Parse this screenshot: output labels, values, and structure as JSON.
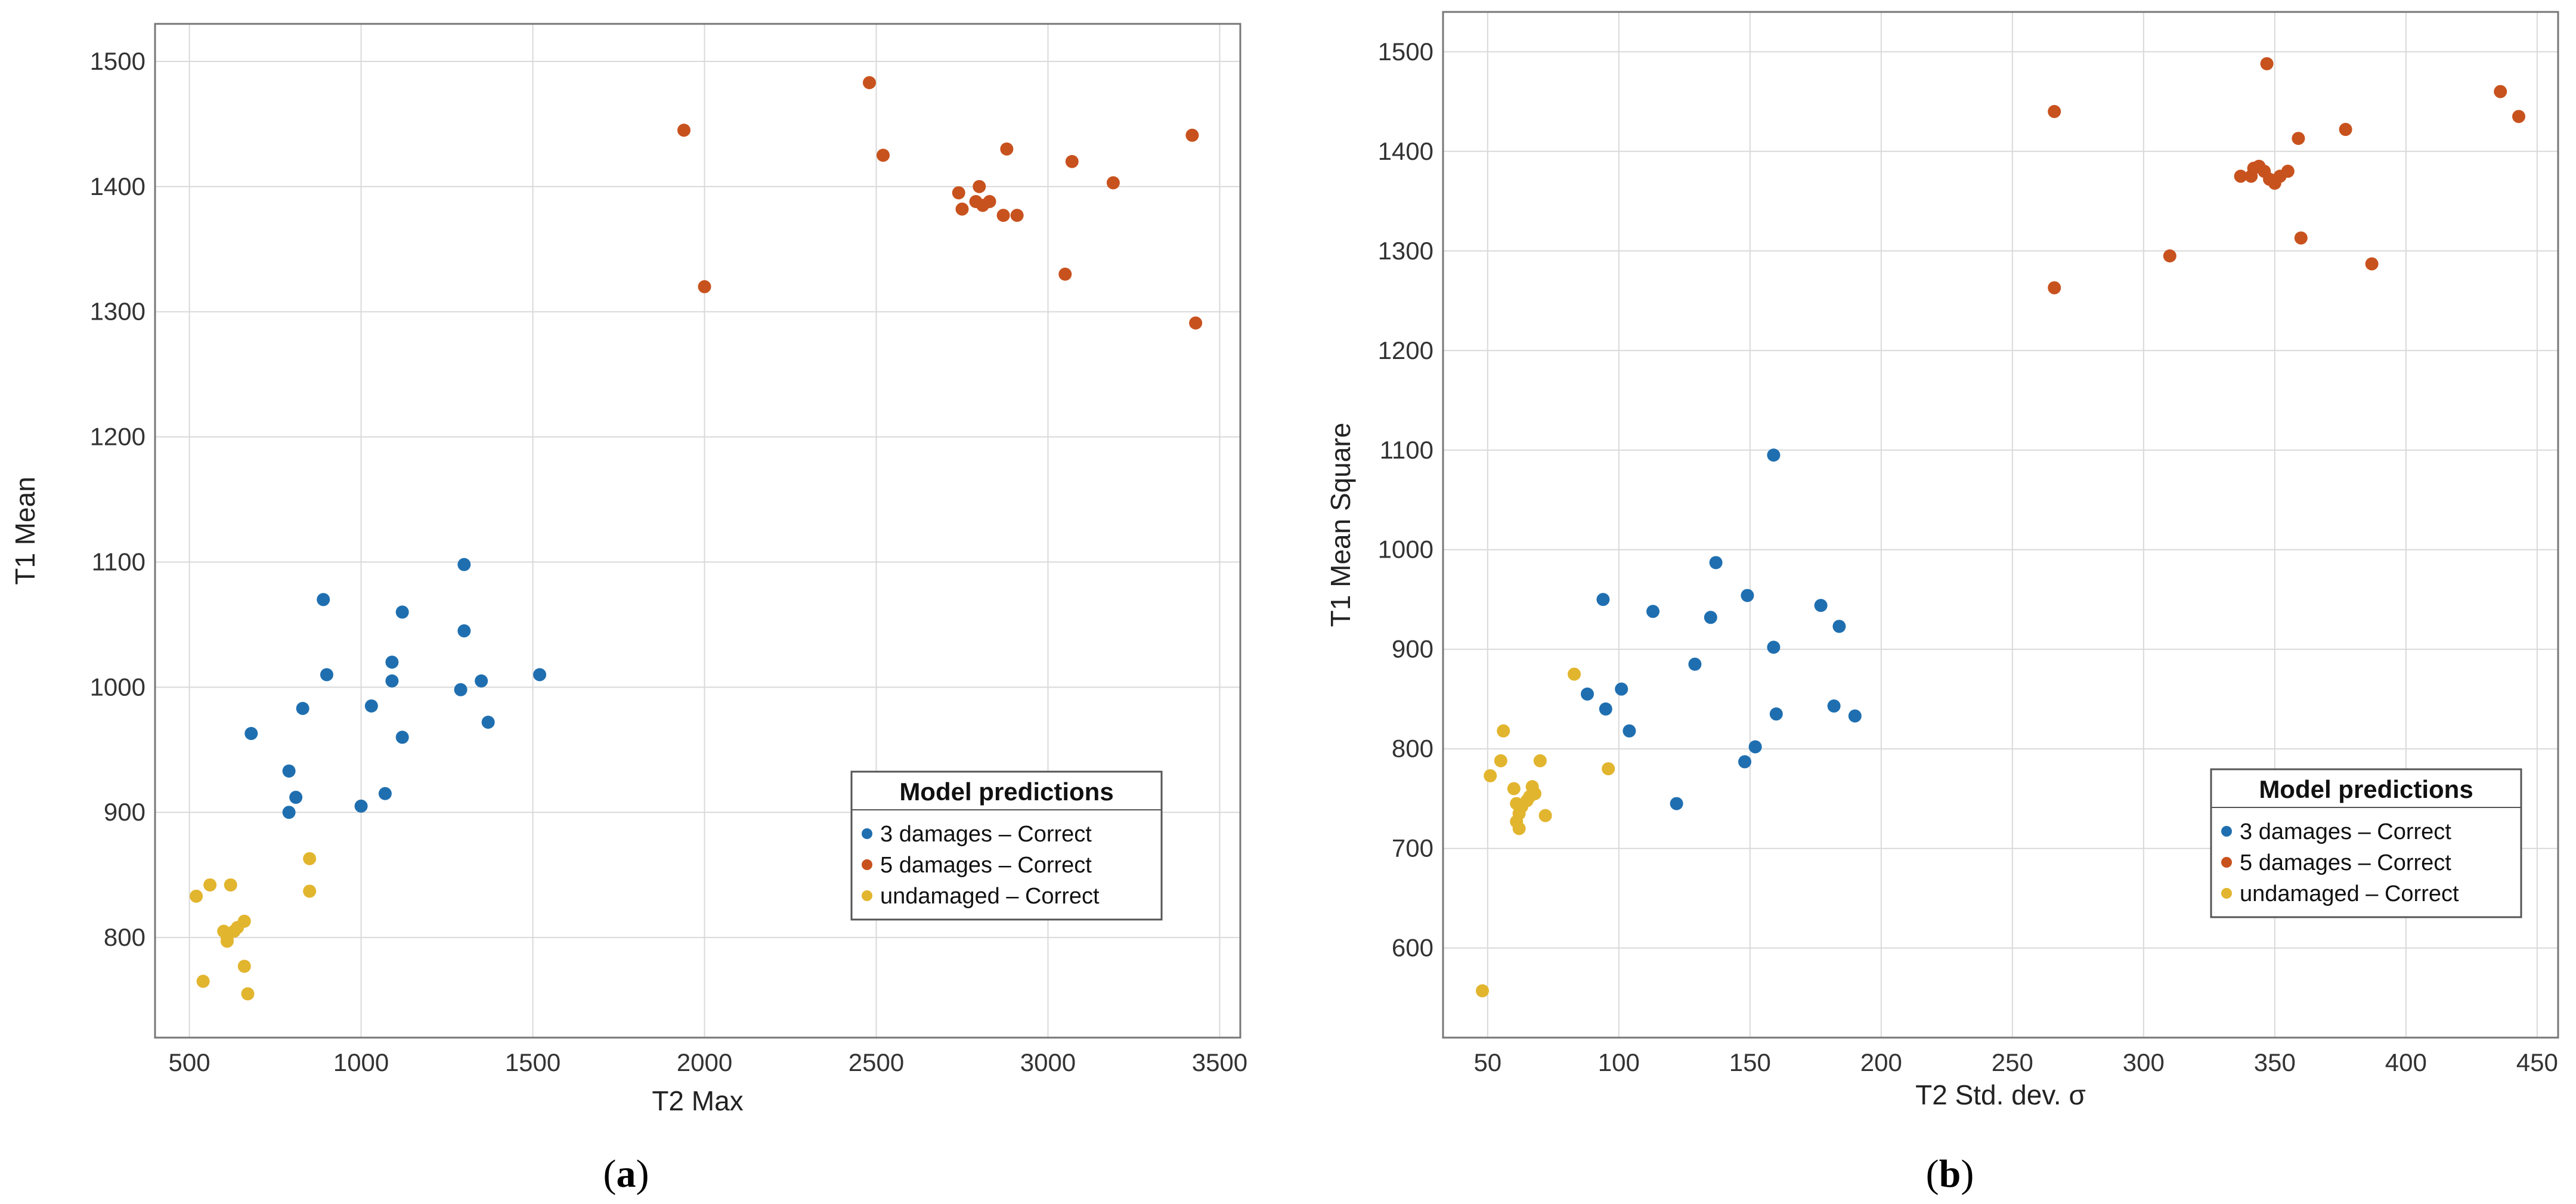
{
  "chart_data": [
    {
      "type": "scatter",
      "panel_label": "a",
      "xlabel": "T2 Max",
      "ylabel": "T1 Mean",
      "xlim": [
        400,
        3560
      ],
      "ylim": [
        720,
        1530
      ],
      "xticks": [
        500,
        1000,
        1500,
        2000,
        2500,
        3000,
        3500
      ],
      "yticks": [
        800,
        900,
        1000,
        1100,
        1200,
        1300,
        1400,
        1500
      ],
      "grid": true,
      "legend": {
        "title": "Model predictions",
        "location": "bottom-right",
        "entries": [
          "3 damages – Correct",
          "5 damages – Correct",
          "undamaged – Correct"
        ]
      },
      "series": [
        {
          "name": "3 damages – Correct",
          "color": "#1f6fb0",
          "points": [
            [
              680,
              963
            ],
            [
              790,
              933
            ],
            [
              790,
              900
            ],
            [
              810,
              912
            ],
            [
              830,
              983
            ],
            [
              890,
              1070
            ],
            [
              900,
              1010
            ],
            [
              1000,
              905
            ],
            [
              1030,
              985
            ],
            [
              1070,
              915
            ],
            [
              1090,
              1020
            ],
            [
              1090,
              1005
            ],
            [
              1120,
              1060
            ],
            [
              1120,
              960
            ],
            [
              1290,
              998
            ],
            [
              1300,
              1098
            ],
            [
              1300,
              1045
            ],
            [
              1350,
              1005
            ],
            [
              1370,
              972
            ],
            [
              1520,
              1010
            ]
          ]
        },
        {
          "name": "5 damages – Correct",
          "color": "#c8521e",
          "points": [
            [
              1940,
              1445
            ],
            [
              2000,
              1320
            ],
            [
              2480,
              1483
            ],
            [
              2520,
              1425
            ],
            [
              2740,
              1395
            ],
            [
              2750,
              1382
            ],
            [
              2790,
              1388
            ],
            [
              2800,
              1400
            ],
            [
              2810,
              1385
            ],
            [
              2830,
              1388
            ],
            [
              2870,
              1377
            ],
            [
              2880,
              1430
            ],
            [
              2910,
              1377
            ],
            [
              3050,
              1330
            ],
            [
              3070,
              1420
            ],
            [
              3190,
              1403
            ],
            [
              3420,
              1441
            ],
            [
              3430,
              1291
            ]
          ]
        },
        {
          "name": "undamaged – Correct",
          "color": "#e2b52e",
          "points": [
            [
              520,
              833
            ],
            [
              540,
              765
            ],
            [
              560,
              842
            ],
            [
              600,
              805
            ],
            [
              610,
              800
            ],
            [
              610,
              797
            ],
            [
              620,
              842
            ],
            [
              630,
              805
            ],
            [
              640,
              808
            ],
            [
              660,
              813
            ],
            [
              660,
              777
            ],
            [
              670,
              755
            ],
            [
              850,
              863
            ],
            [
              850,
              837
            ]
          ]
        }
      ]
    },
    {
      "type": "scatter",
      "panel_label": "b",
      "xlabel": "T2 Std. dev. σ",
      "ylabel": "T1 Mean Square",
      "xlim": [
        33,
        458
      ],
      "ylim": [
        510,
        1540
      ],
      "xticks": [
        50,
        100,
        150,
        200,
        250,
        300,
        350,
        400,
        450
      ],
      "yticks": [
        600,
        700,
        800,
        900,
        1000,
        1100,
        1200,
        1300,
        1400,
        1500
      ],
      "grid": true,
      "legend": {
        "title": "Model predictions",
        "location": "bottom-right",
        "entries": [
          "3 damages – Correct",
          "5 damages – Correct",
          "undamaged – Correct"
        ]
      },
      "series": [
        {
          "name": "3 damages – Correct",
          "color": "#1f6fb0",
          "points": [
            [
              88,
              855
            ],
            [
              94,
              950
            ],
            [
              95,
              840
            ],
            [
              101,
              860
            ],
            [
              104,
              818
            ],
            [
              113,
              938
            ],
            [
              122,
              745
            ],
            [
              129,
              885
            ],
            [
              135,
              932
            ],
            [
              137,
              987
            ],
            [
              148,
              787
            ],
            [
              149,
              954
            ],
            [
              152,
              802
            ],
            [
              159,
              902
            ],
            [
              159,
              1095
            ],
            [
              160,
              835
            ],
            [
              177,
              944
            ],
            [
              182,
              843
            ],
            [
              184,
              923
            ],
            [
              190,
              833
            ]
          ]
        },
        {
          "name": "5 damages – Correct",
          "color": "#c8521e",
          "points": [
            [
              266,
              1440
            ],
            [
              266,
              1263
            ],
            [
              310,
              1295
            ],
            [
              337,
              1375
            ],
            [
              341,
              1375
            ],
            [
              342,
              1383
            ],
            [
              344,
              1385
            ],
            [
              346,
              1380
            ],
            [
              347,
              1488
            ],
            [
              348,
              1372
            ],
            [
              350,
              1368
            ],
            [
              352,
              1375
            ],
            [
              355,
              1380
            ],
            [
              359,
              1413
            ],
            [
              360,
              1313
            ],
            [
              377,
              1422
            ],
            [
              387,
              1287
            ],
            [
              436,
              1460
            ],
            [
              443,
              1435
            ]
          ]
        },
        {
          "name": "undamaged – Correct",
          "color": "#e2b52e",
          "points": [
            [
              48,
              557
            ],
            [
              51,
              773
            ],
            [
              55,
              788
            ],
            [
              56,
              818
            ],
            [
              60,
              760
            ],
            [
              61,
              745
            ],
            [
              61,
              727
            ],
            [
              62,
              735
            ],
            [
              62,
              720
            ],
            [
              63,
              742
            ],
            [
              65,
              748
            ],
            [
              66,
              752
            ],
            [
              67,
              762
            ],
            [
              68,
              755
            ],
            [
              70,
              788
            ],
            [
              72,
              733
            ],
            [
              83,
              875
            ],
            [
              96,
              780
            ]
          ]
        }
      ]
    }
  ]
}
